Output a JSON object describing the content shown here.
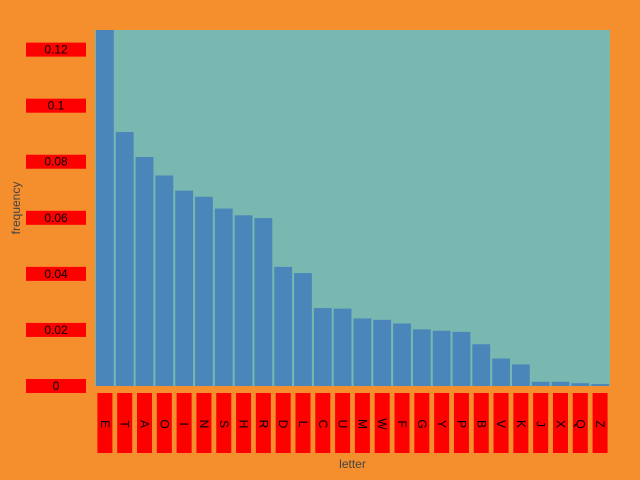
{
  "chart_data": {
    "type": "bar",
    "xlabel": "letter",
    "ylabel": "frequency",
    "ylim": [
      0,
      0.127
    ],
    "yticks": [
      "0",
      "0.02",
      "0.04",
      "0.06",
      "0.08",
      "0.1",
      "0.12"
    ],
    "categories": [
      "E",
      "T",
      "A",
      "O",
      "I",
      "N",
      "S",
      "H",
      "R",
      "D",
      "L",
      "C",
      "U",
      "M",
      "W",
      "F",
      "G",
      "Y",
      "P",
      "B",
      "V",
      "K",
      "J",
      "X",
      "Q",
      "Z"
    ],
    "values": [
      0.127,
      0.0906,
      0.0817,
      0.0751,
      0.0697,
      0.0675,
      0.0633,
      0.0609,
      0.0599,
      0.0425,
      0.0403,
      0.0278,
      0.0276,
      0.0241,
      0.0236,
      0.0223,
      0.0202,
      0.0197,
      0.0193,
      0.0149,
      0.0098,
      0.0077,
      0.0015,
      0.0015,
      0.001,
      0.0007
    ],
    "colors": {
      "background": "#f58e2d",
      "plot_background": "#79b7b1",
      "bar": "#4a86b9",
      "tick_label_box": "#ff0000"
    },
    "grid": false
  }
}
